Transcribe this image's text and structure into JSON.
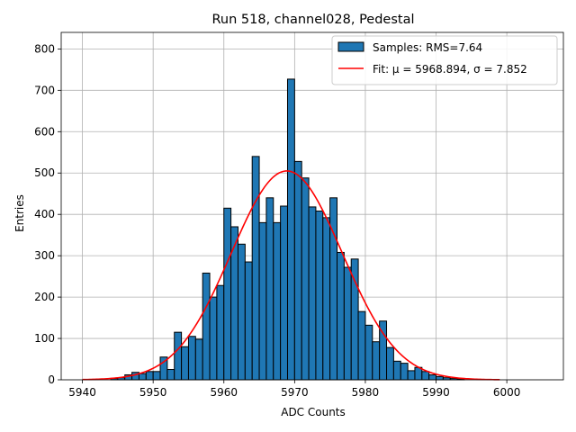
{
  "chart_data": {
    "type": "bar",
    "title": "Run 518, channel028, Pedestal",
    "xlabel": "ADC Counts",
    "ylabel": "Entries",
    "xlim": [
      5937,
      6008
    ],
    "ylim": [
      0,
      840
    ],
    "xticks": [
      5940,
      5950,
      5960,
      5970,
      5980,
      5990,
      6000
    ],
    "yticks": [
      0,
      100,
      200,
      300,
      400,
      500,
      600,
      700,
      800
    ],
    "grid": true,
    "legend_position": "top-right",
    "histogram": {
      "name": "Samples: RMS=7.64",
      "color": "#1f77b4",
      "bin_width": 1,
      "bins": [
        [
          5944,
          3
        ],
        [
          5945,
          5
        ],
        [
          5946,
          12
        ],
        [
          5947,
          18
        ],
        [
          5948,
          15
        ],
        [
          5949,
          20
        ],
        [
          5950,
          20
        ],
        [
          5951,
          55
        ],
        [
          5952,
          25
        ],
        [
          5953,
          115
        ],
        [
          5954,
          80
        ],
        [
          5955,
          105
        ],
        [
          5956,
          98
        ],
        [
          5957,
          258
        ],
        [
          5958,
          200
        ],
        [
          5959,
          228
        ],
        [
          5960,
          415
        ],
        [
          5961,
          370
        ],
        [
          5962,
          328
        ],
        [
          5963,
          285
        ],
        [
          5964,
          540
        ],
        [
          5965,
          380
        ],
        [
          5966,
          440
        ],
        [
          5967,
          380
        ],
        [
          5968,
          420
        ],
        [
          5969,
          727
        ],
        [
          5970,
          528
        ],
        [
          5971,
          488
        ],
        [
          5972,
          418
        ],
        [
          5973,
          408
        ],
        [
          5974,
          392
        ],
        [
          5975,
          440
        ],
        [
          5976,
          308
        ],
        [
          5977,
          272
        ],
        [
          5978,
          292
        ],
        [
          5979,
          165
        ],
        [
          5980,
          132
        ],
        [
          5981,
          92
        ],
        [
          5982,
          142
        ],
        [
          5983,
          78
        ],
        [
          5984,
          45
        ],
        [
          5985,
          40
        ],
        [
          5986,
          22
        ],
        [
          5987,
          30
        ],
        [
          5988,
          20
        ],
        [
          5989,
          12
        ],
        [
          5990,
          8
        ],
        [
          5991,
          5
        ],
        [
          5992,
          3
        ],
        [
          5993,
          2
        ]
      ]
    },
    "fit": {
      "name": "Fit: μ = 5968.894, σ = 7.852",
      "color": "#ff0000",
      "mu": 5968.894,
      "sigma": 7.852,
      "peak": 505,
      "x_range": [
        5940,
        5999
      ]
    }
  }
}
